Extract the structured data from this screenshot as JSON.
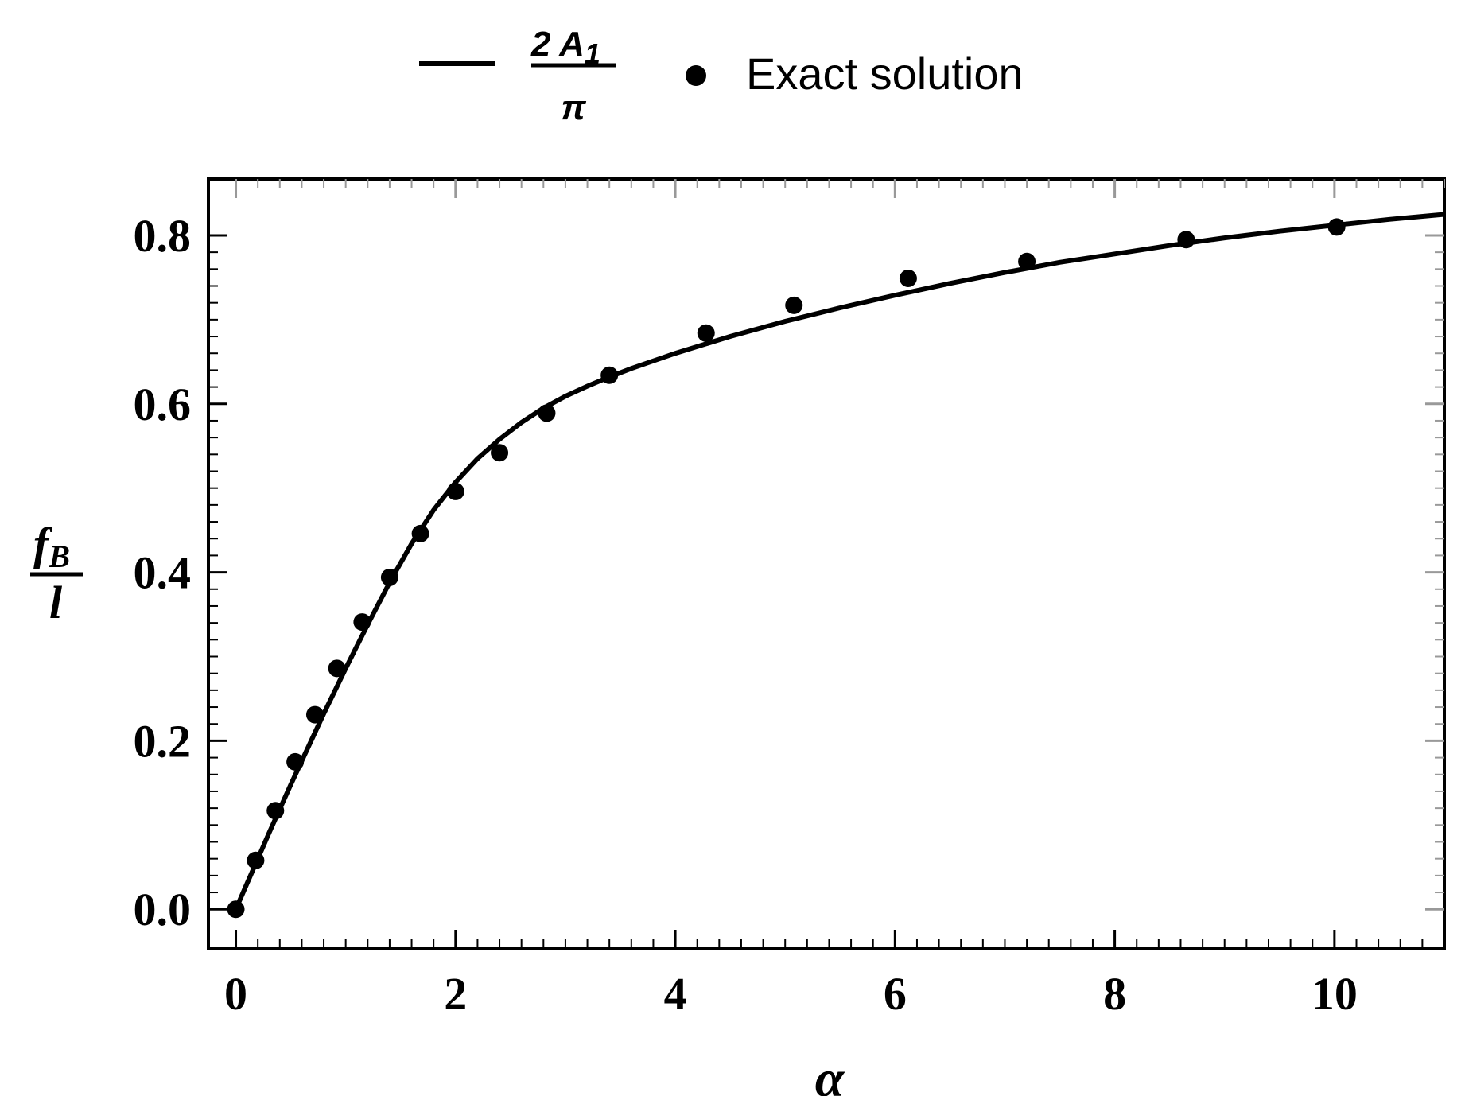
{
  "legend": {
    "line_label": {
      "numerator": "2 A",
      "subscript": "1",
      "denominator": "π"
    },
    "points_label": "Exact solution"
  },
  "chart_data": {
    "type": "line",
    "title": "",
    "xlabel": "α",
    "ylabel": {
      "numerator": "f",
      "numerator_sub": "B",
      "denominator": "l"
    },
    "xlim": [
      -0.25,
      11
    ],
    "ylim": [
      -0.047,
      0.867
    ],
    "xticks": [
      0,
      2,
      4,
      6,
      8,
      10
    ],
    "xtick_labels": [
      "0",
      "2",
      "4",
      "6",
      "8",
      "10"
    ],
    "yticks": [
      0.0,
      0.2,
      0.4,
      0.6,
      0.8
    ],
    "ytick_labels": [
      "0.0",
      "0.2",
      "0.4",
      "0.6",
      "0.8"
    ],
    "grid": false,
    "legend_position": "top-center",
    "line_color": "#000000",
    "point_color": "#000000",
    "series": [
      {
        "name": "2A1/π",
        "style": "line",
        "x": [
          0,
          0.1,
          0.2,
          0.3,
          0.4,
          0.5,
          0.6,
          0.7,
          0.8,
          0.9,
          1.0,
          1.2,
          1.4,
          1.6,
          1.8,
          2.0,
          2.2,
          2.4,
          2.6,
          2.8,
          3.0,
          3.2,
          3.4,
          3.6,
          4.0,
          4.5,
          5.0,
          5.5,
          6.0,
          6.5,
          7.0,
          7.5,
          8.0,
          8.5,
          9.0,
          9.5,
          10.0,
          10.5,
          11.0
        ],
        "y": [
          0,
          0.03,
          0.06,
          0.09,
          0.119,
          0.148,
          0.176,
          0.204,
          0.232,
          0.259,
          0.286,
          0.338,
          0.388,
          0.434,
          0.474,
          0.507,
          0.535,
          0.558,
          0.578,
          0.595,
          0.609,
          0.621,
          0.632,
          0.642,
          0.66,
          0.68,
          0.698,
          0.714,
          0.729,
          0.743,
          0.756,
          0.768,
          0.778,
          0.788,
          0.797,
          0.805,
          0.812,
          0.819,
          0.825
        ]
      },
      {
        "name": "Exact solution",
        "style": "points",
        "x": [
          0,
          0.18,
          0.36,
          0.54,
          0.72,
          0.92,
          1.15,
          1.4,
          1.68,
          2.0,
          2.4,
          2.83,
          3.4,
          4.28,
          5.08,
          6.12,
          7.2,
          8.65,
          10.02
        ],
        "y": [
          0,
          0.058,
          0.117,
          0.175,
          0.231,
          0.286,
          0.341,
          0.394,
          0.446,
          0.496,
          0.542,
          0.589,
          0.634,
          0.684,
          0.717,
          0.749,
          0.769,
          0.795,
          0.81
        ]
      }
    ]
  }
}
